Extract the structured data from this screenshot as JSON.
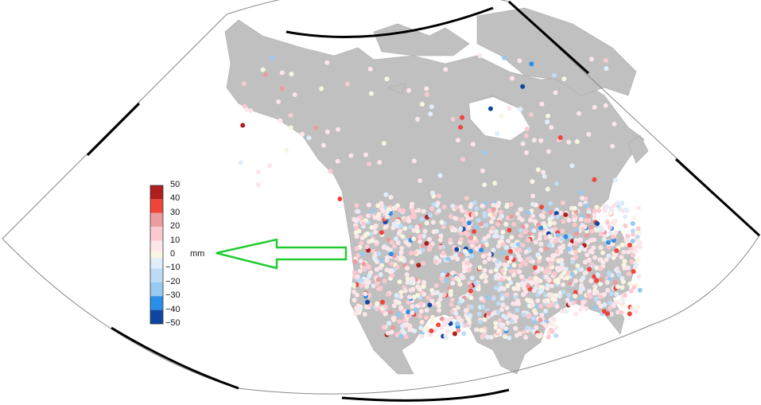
{
  "legend": {
    "unit": "mm",
    "ticks": [
      "50",
      "40",
      "30",
      "20",
      "10",
      "0",
      "−10",
      "−20",
      "−30",
      "−40",
      "−50"
    ],
    "bins": [
      {
        "range": [
          40,
          50
        ],
        "color": "#b01e1e"
      },
      {
        "range": [
          30,
          40
        ],
        "color": "#f0453a"
      },
      {
        "range": [
          20,
          30
        ],
        "color": "#ec9c9e"
      },
      {
        "range": [
          10,
          20
        ],
        "color": "#fbc9cf"
      },
      {
        "range": [
          2,
          10
        ],
        "color": "#fde6ea"
      },
      {
        "range": [
          -2,
          2
        ],
        "color": "#f8f6e0"
      },
      {
        "range": [
          -10,
          -2
        ],
        "color": "#e0eefb"
      },
      {
        "range": [
          -20,
          -10
        ],
        "color": "#bddcf6"
      },
      {
        "range": [
          -30,
          -20
        ],
        "color": "#97c9f1"
      },
      {
        "range": [
          -40,
          -30
        ],
        "color": "#2a8fe8"
      },
      {
        "range": [
          -50,
          -40
        ],
        "color": "#0f47a0"
      }
    ]
  },
  "annotation": {
    "arrow_color": "#22cc33",
    "points_to": "0 mm"
  },
  "colors": {
    "land": "#c0c0c0",
    "ocean": "#ffffff",
    "borders": "#999999"
  }
}
